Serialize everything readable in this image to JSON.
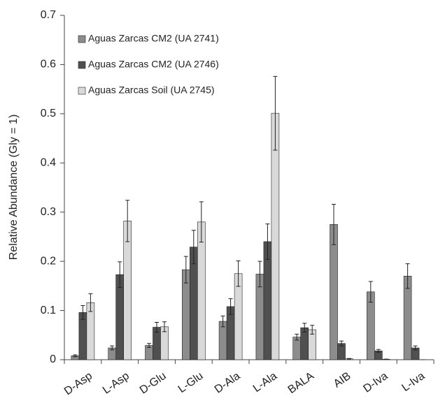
{
  "chart_data": {
    "type": "bar",
    "y_label": "Relative Abundance (Gly = 1)",
    "categories": [
      "D-Asp",
      "L-Asp",
      "D-Glu",
      "L-Glu",
      "D-Ala",
      "L-Ala",
      "BALA",
      "AIB",
      "D-Iva",
      "L-Iva"
    ],
    "series": [
      {
        "name": "Aguas Zarcas CM2 (UA 2741)",
        "color": "#8c8c8c",
        "values": [
          0.008,
          0.024,
          0.029,
          0.183,
          0.078,
          0.174,
          0.046,
          0.275,
          0.138,
          0.17
        ],
        "errors": [
          0.002,
          0.004,
          0.004,
          0.027,
          0.011,
          0.026,
          0.006,
          0.041,
          0.021,
          0.025
        ]
      },
      {
        "name": "Aguas Zarcas CM2 (UA 2746)",
        "color": "#505050",
        "values": [
          0.096,
          0.173,
          0.066,
          0.229,
          0.108,
          0.24,
          0.065,
          0.033,
          0.018,
          0.024
        ],
        "errors": [
          0.014,
          0.026,
          0.01,
          0.034,
          0.016,
          0.036,
          0.009,
          0.005,
          0.003,
          0.004
        ]
      },
      {
        "name": "Aguas Zarcas Soil (UA 2745)",
        "color": "#d9d9d9",
        "values": [
          0.116,
          0.282,
          0.067,
          0.28,
          0.175,
          0.501,
          0.061,
          0.002,
          0.001,
          0
        ],
        "errors": [
          0.018,
          0.042,
          0.01,
          0.041,
          0.026,
          0.075,
          0.009,
          0.0005,
          0.0002,
          0
        ]
      }
    ],
    "ylim": [
      0,
      0.7
    ],
    "yticks": [
      0,
      0.1,
      0.2,
      0.3,
      0.4,
      0.5,
      0.6,
      0.7
    ],
    "grid": false,
    "legend": "top-left"
  }
}
